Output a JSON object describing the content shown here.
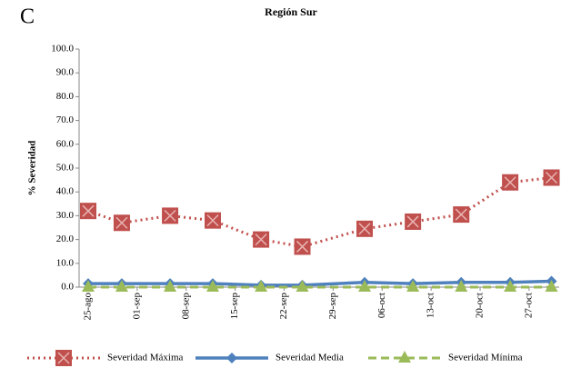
{
  "chart_data": {
    "type": "line",
    "panel_label": "C",
    "title": "Región Sur",
    "ylabel": "% Severidad",
    "x": [
      0,
      4.8,
      11.7,
      17.8,
      24.7,
      30.6,
      39.5,
      46.4,
      53.3,
      60.3,
      66.2
    ],
    "xlim": [
      -1.3,
      67.3
    ],
    "xticks": [
      {
        "value": 0,
        "label": "25-ago"
      },
      {
        "value": 7,
        "label": "01-sep"
      },
      {
        "value": 14,
        "label": "08-sep"
      },
      {
        "value": 21,
        "label": "15-sep"
      },
      {
        "value": 28,
        "label": "22-sep"
      },
      {
        "value": 35,
        "label": "29-sep"
      },
      {
        "value": 42,
        "label": "06-oct"
      },
      {
        "value": 49,
        "label": "13-oct"
      },
      {
        "value": 56,
        "label": "20-oct"
      },
      {
        "value": 63,
        "label": "27-oct"
      }
    ],
    "ylim": [
      0,
      100
    ],
    "yticks": [
      {
        "value": 0,
        "label": "0.0"
      },
      {
        "value": 10,
        "label": "10.0"
      },
      {
        "value": 20,
        "label": "20.0"
      },
      {
        "value": 30,
        "label": "30.0"
      },
      {
        "value": 40,
        "label": "40.0"
      },
      {
        "value": 50,
        "label": "50.0"
      },
      {
        "value": 60,
        "label": "60.0"
      },
      {
        "value": 70,
        "label": "70.0"
      },
      {
        "value": 80,
        "label": "80.0"
      },
      {
        "value": 90,
        "label": "90.0"
      },
      {
        "value": 100,
        "label": "100.0"
      }
    ],
    "legend": "bottom",
    "series": [
      {
        "name": "Severidad Máxima",
        "color": "#c0504d",
        "style": "dotted",
        "marker": "x-square",
        "values": [
          32,
          27,
          30,
          28,
          20,
          17,
          24.5,
          27.5,
          30.5,
          44,
          46
        ]
      },
      {
        "name": "Severidad Media",
        "color": "#4f81bd",
        "style": "solid",
        "marker": "diamond",
        "values": [
          1.5,
          1.5,
          1.5,
          1.5,
          0.8,
          0.8,
          2,
          1.5,
          2,
          2,
          2.5
        ]
      },
      {
        "name": "Severidad Mínima",
        "color": "#9bbb59",
        "style": "dashed",
        "marker": "triangle",
        "values": [
          0,
          0,
          0,
          0,
          0,
          0,
          0,
          0,
          0,
          0,
          0
        ]
      }
    ]
  }
}
